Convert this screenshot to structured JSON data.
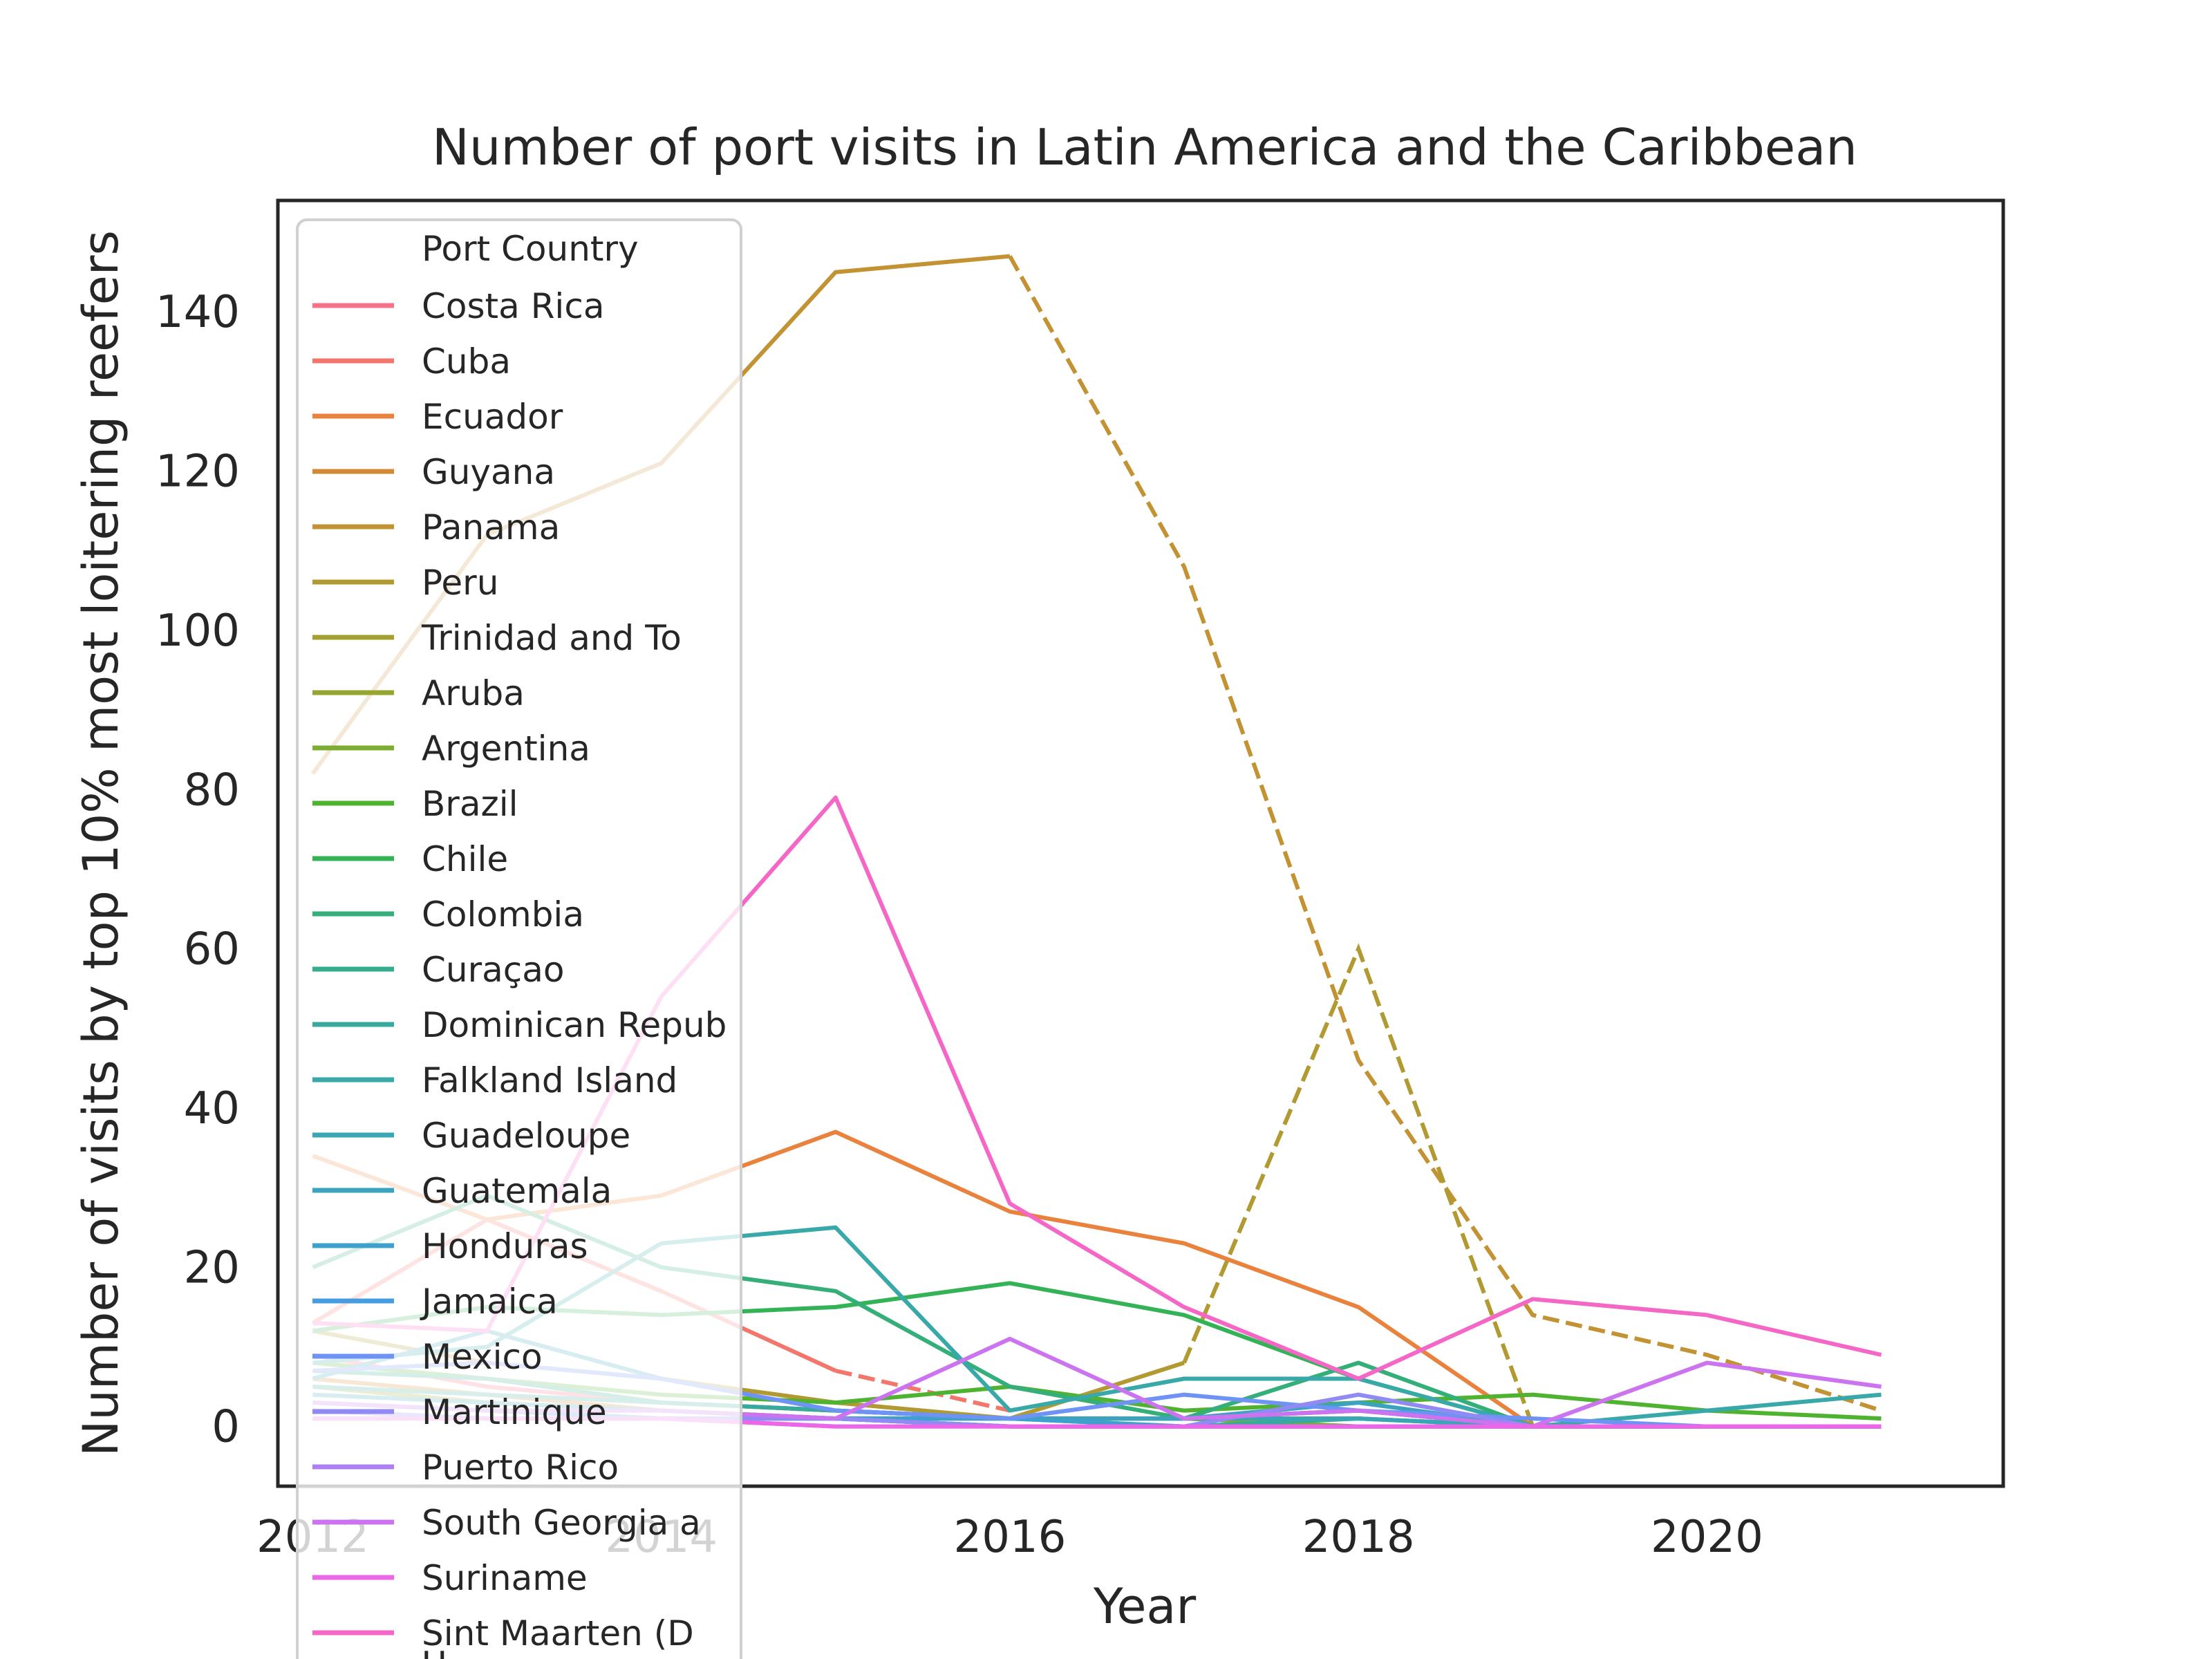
{
  "chart_data": {
    "type": "line",
    "title": "Number of port visits in Latin America and the Caribbean",
    "xlabel": "Year",
    "ylabel": "Number of visits by top 10% most loitering reefers",
    "xlim": [
      2011.8,
      2021.7
    ],
    "ylim": [
      -7.5,
      154
    ],
    "xticks": [
      2012,
      2014,
      2016,
      2018,
      2020
    ],
    "yticks": [
      0,
      20,
      40,
      60,
      80,
      100,
      120,
      140
    ],
    "legend_title": "Port Country",
    "legend_position": "upper left",
    "grid": false,
    "x": [
      2012,
      2013,
      2014,
      2015,
      2016,
      2017,
      2018,
      2019,
      2020,
      2021
    ],
    "series": [
      {
        "name": "Costa Rica",
        "color": "#f77189",
        "values": [
          9,
          5,
          3,
          2,
          1,
          1,
          1,
          0,
          0,
          0
        ]
      },
      {
        "name": "Cuba",
        "color": "#f3766c",
        "values": [
          13,
          26,
          17,
          7,
          null,
          null,
          null,
          null,
          null,
          null
        ],
        "dashed_values": [
          null,
          null,
          null,
          7,
          2,
          null,
          null,
          null,
          null,
          null
        ]
      },
      {
        "name": "Ecuador",
        "color": "#e8823d",
        "values": [
          34,
          26,
          29,
          37,
          27,
          23,
          15,
          0,
          0,
          0
        ]
      },
      {
        "name": "Guyana",
        "color": "#d48a34",
        "values": [
          6,
          4,
          2,
          1,
          1,
          1,
          2,
          0,
          0,
          0
        ]
      },
      {
        "name": "Panama",
        "color": "#c29233",
        "values": [
          82,
          112,
          121,
          145,
          147,
          null,
          null,
          null,
          null,
          null
        ],
        "dashed_values": [
          null,
          null,
          null,
          null,
          147,
          108,
          46,
          14,
          9,
          2
        ]
      },
      {
        "name": "Peru",
        "color": "#b19a32",
        "values": [
          12,
          8,
          6,
          3,
          1,
          8,
          null,
          null,
          null,
          null
        ],
        "dashed_values": [
          null,
          null,
          null,
          null,
          null,
          8,
          60,
          0,
          null,
          null
        ]
      },
      {
        "name": "Trinidad and To",
        "color": "#a49f31",
        "values": [
          5,
          3,
          2,
          1,
          0,
          0,
          0,
          0,
          0,
          0
        ]
      },
      {
        "name": "Aruba",
        "color": "#97a531",
        "values": [
          2,
          1,
          1,
          1,
          0,
          0,
          0,
          0,
          0,
          0
        ]
      },
      {
        "name": "Argentina",
        "color": "#7cac31",
        "values": [
          3,
          2,
          1,
          1,
          1,
          1,
          0,
          0,
          0,
          0
        ]
      },
      {
        "name": "Brazil",
        "color": "#4fb331",
        "values": [
          8,
          6,
          4,
          3,
          5,
          2,
          3,
          4,
          2,
          1
        ]
      },
      {
        "name": "Chile",
        "color": "#33b356",
        "values": [
          12,
          15,
          14,
          15,
          18,
          14,
          6,
          0,
          0,
          0
        ]
      },
      {
        "name": "Colombia",
        "color": "#35af7a",
        "values": [
          20,
          29,
          20,
          17,
          5,
          1,
          8,
          0,
          0,
          0
        ]
      },
      {
        "name": "Curaçao",
        "color": "#36ac8e",
        "values": [
          7,
          6,
          3,
          2,
          1,
          1,
          2,
          0,
          0,
          0
        ]
      },
      {
        "name": "Dominican Repub",
        "color": "#37aa9c",
        "values": [
          5,
          4,
          3,
          2,
          1,
          0,
          1,
          0,
          0,
          0
        ]
      },
      {
        "name": "Falkland Island",
        "color": "#38a8a8",
        "values": [
          8,
          10,
          23,
          25,
          2,
          6,
          6,
          0,
          2,
          4
        ]
      },
      {
        "name": "Guadeloupe",
        "color": "#39a6b3",
        "values": [
          4,
          3,
          2,
          1,
          1,
          1,
          1,
          0,
          0,
          0
        ]
      },
      {
        "name": "Guatemala",
        "color": "#3ba3bf",
        "values": [
          6,
          12,
          6,
          2,
          1,
          1,
          3,
          0,
          0,
          0
        ]
      },
      {
        "name": "Honduras",
        "color": "#3ea0cd",
        "values": [
          2,
          1,
          1,
          1,
          1,
          0,
          0,
          0,
          0,
          0
        ]
      },
      {
        "name": "Jamaica",
        "color": "#469cdf",
        "values": [
          3,
          2,
          1,
          1,
          0,
          0,
          0,
          0,
          0,
          0
        ]
      },
      {
        "name": "Mexico",
        "color": "#6e93f4",
        "values": [
          7,
          8,
          6,
          2,
          1,
          4,
          2,
          1,
          0,
          0
        ]
      },
      {
        "name": "Martinique",
        "color": "#9189f4",
        "values": [
          2,
          1,
          1,
          1,
          0,
          0,
          4,
          0,
          0,
          0
        ]
      },
      {
        "name": "Puerto Rico",
        "color": "#ae7ff3",
        "values": [
          1,
          1,
          1,
          0,
          0,
          0,
          0,
          0,
          0,
          0
        ]
      },
      {
        "name": "South Georgia a",
        "color": "#cc74f0",
        "values": [
          3,
          2,
          2,
          1,
          11,
          1,
          2,
          0,
          8,
          5
        ]
      },
      {
        "name": "Suriname",
        "color": "#eb67e7",
        "values": [
          1,
          1,
          1,
          0,
          0,
          0,
          0,
          0,
          0,
          0
        ]
      },
      {
        "name": "Sint Maarten (D",
        "color": "#f467c6",
        "values": [
          13,
          12,
          54,
          79,
          28,
          15,
          6,
          16,
          14,
          9
        ]
      }
    ],
    "legend_overflow_text": "U"
  }
}
